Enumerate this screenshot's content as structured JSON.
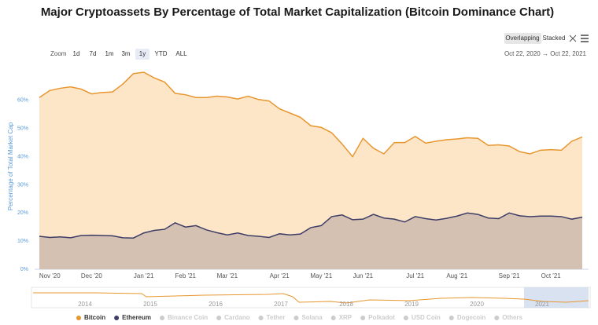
{
  "chart_data": {
    "type": "area",
    "title": "Major Cryptoassets By Percentage of Total Market Capitalization (Bitcoin Dominance Chart)",
    "y_label": "Percentage of Total Market Cap",
    "categories": [
      null,
      "Nov '20",
      null,
      null,
      null,
      "Dec '20",
      null,
      null,
      null,
      null,
      "Jan '21",
      null,
      null,
      null,
      "Feb '21",
      null,
      null,
      null,
      "Mar '21",
      null,
      null,
      null,
      null,
      "Apr '21",
      null,
      null,
      null,
      "May '21",
      null,
      null,
      null,
      "Jun '21",
      null,
      null,
      null,
      null,
      "Jul '21",
      null,
      null,
      null,
      "Aug '21",
      null,
      null,
      null,
      null,
      "Sep '21",
      null,
      null,
      null,
      "Oct '21",
      null,
      null,
      null
    ],
    "series": [
      {
        "name": "Bitcoin",
        "color": "#e8962e",
        "fill": "#fde6c8",
        "values": [
          61,
          63.5,
          64.3,
          64.8,
          64,
          62.3,
          62.8,
          63,
          65.8,
          69.5,
          70,
          68,
          66.5,
          62.5,
          62,
          61,
          61,
          61.5,
          61.2,
          60.5,
          61.5,
          60.3,
          59.8,
          57,
          55.5,
          54,
          51,
          50.4,
          48.5,
          44.5,
          40,
          46.5,
          43,
          41,
          45,
          45,
          47.2,
          44.8,
          45.5,
          46,
          46.3,
          46.7,
          46.5,
          44,
          44.2,
          43.8,
          41.8,
          41,
          42.3,
          42.5,
          42.3,
          45.5,
          47
        ]
      },
      {
        "name": "Ethereum",
        "color": "#3d3d66",
        "fill": "#4a3f5e",
        "values": [
          11.7,
          11.3,
          11.5,
          11.2,
          12.0,
          12.1,
          12.0,
          11.9,
          11.2,
          11.1,
          12.9,
          13.8,
          14.2,
          16.5,
          15.0,
          15.5,
          14.0,
          13.0,
          12.2,
          12.9,
          12.0,
          11.7,
          11.3,
          12.6,
          12.2,
          12.5,
          14.8,
          15.5,
          18.7,
          19.3,
          17.6,
          17.8,
          19.5,
          18.2,
          17.8,
          16.8,
          18.7,
          18.0,
          17.5,
          18.1,
          18.9,
          20.0,
          19.5,
          18.2,
          18.0,
          20.0,
          19.0,
          18.7,
          18.9,
          18.9,
          18.7,
          17.8,
          18.5
        ]
      }
    ],
    "hidden_series": [
      "Binance Coin",
      "Cardano",
      "Tether",
      "Solana",
      "XRP",
      "Polkadot",
      "USD Coin",
      "Dogecoin",
      "Others"
    ],
    "ylim": [
      0,
      70
    ],
    "yticks": [
      {
        "value": 0,
        "label": "0%"
      },
      {
        "value": 10,
        "label": "10%"
      },
      {
        "value": 20,
        "label": "20%"
      },
      {
        "value": 30,
        "label": "30%"
      },
      {
        "value": 40,
        "label": "40%"
      },
      {
        "value": 50,
        "label": "50%"
      },
      {
        "value": 60,
        "label": "60%"
      }
    ],
    "grid": false,
    "legend": "bottom"
  },
  "controls": {
    "zoom_label": "Zoom",
    "zoom": [
      "1d",
      "7d",
      "1m",
      "3m",
      "1y",
      "YTD",
      "ALL"
    ],
    "zoom_active": "1y",
    "range": "Oct 22, 2020  →  Oct 22, 2021",
    "views": [
      "Overlapping",
      "Stacked"
    ]
  },
  "navigator": {
    "years": [
      "2014",
      "2015",
      "2016",
      "2017",
      "2018",
      "2019",
      "2020",
      "2021"
    ]
  }
}
